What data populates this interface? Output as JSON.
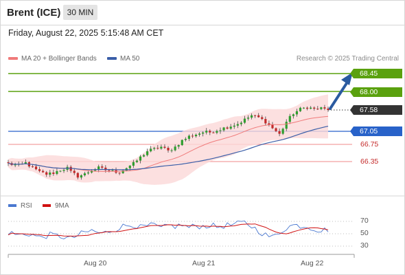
{
  "header": {
    "instrument": "Brent (ICE)",
    "timeframe": "30 MIN"
  },
  "datetime": "Friday, August 22, 2025 5:15:48 AM CET",
  "legend": {
    "ma20": "MA 20 + Bollinger Bands",
    "ma50": "MA 50",
    "credit": "Research © 2025 Trading Central"
  },
  "levels": {
    "resistance": [
      "68.45",
      "68.00"
    ],
    "current": "67.58",
    "pivot": "67.05",
    "support": [
      "66.75",
      "66.35"
    ]
  },
  "rsi": {
    "label": "RSI",
    "ma_label": "9MA",
    "ticks": [
      "70",
      "50",
      "30"
    ]
  },
  "x_axis": {
    "labels": [
      "Aug 20",
      "Aug 21",
      "Aug 22"
    ]
  },
  "colors": {
    "resistance": "#5aa10e",
    "pivot": "#2862c9",
    "support": "#f08a8a",
    "support_text": "#c42a2a",
    "current": "#333333",
    "bull_candle": "#2e9e2e",
    "bear_candle": "#c42a2a",
    "bollinger_fill": "#fbd8d8",
    "ma20": "#f07a7a",
    "ma50": "#3a5ea8",
    "rsi_line": "#4a78d0",
    "rsi_ma": "#d01010",
    "arrow": "#2a5aa0"
  },
  "chart_data": {
    "type": "candlestick",
    "title": "Brent (ICE)",
    "y_range": [
      65.9,
      68.7
    ],
    "x_labels": [
      "Aug 20",
      "Aug 21",
      "Aug 22"
    ],
    "last_price": 67.58,
    "resistance_levels": [
      68.45,
      68.0
    ],
    "pivot": 67.05,
    "support_levels": [
      66.75,
      66.35
    ],
    "close_path": [
      [
        0,
        66.3
      ],
      [
        3,
        66.25
      ],
      [
        5,
        66.32
      ],
      [
        7,
        66.2
      ],
      [
        9,
        66.1
      ],
      [
        11,
        66.05
      ],
      [
        13,
        66.08
      ],
      [
        15,
        66.15
      ],
      [
        17,
        66.2
      ],
      [
        18,
        66.1
      ],
      [
        20,
        66.0
      ],
      [
        22,
        66.05
      ],
      [
        24,
        66.15
      ],
      [
        26,
        66.2
      ],
      [
        28,
        66.15
      ],
      [
        30,
        66.12
      ],
      [
        32,
        66.1
      ],
      [
        34,
        66.2
      ],
      [
        36,
        66.3
      ],
      [
        38,
        66.45
      ],
      [
        40,
        66.6
      ],
      [
        42,
        66.65
      ],
      [
        44,
        66.7
      ],
      [
        46,
        66.6
      ],
      [
        48,
        66.7
      ],
      [
        50,
        66.85
      ],
      [
        52,
        66.95
      ],
      [
        54,
        67.0
      ],
      [
        56,
        67.05
      ],
      [
        58,
        67.05
      ],
      [
        60,
        67.1
      ],
      [
        62,
        67.15
      ],
      [
        64,
        67.2
      ],
      [
        66,
        67.25
      ],
      [
        68,
        67.35
      ],
      [
        70,
        67.45
      ],
      [
        72,
        67.4
      ],
      [
        74,
        67.3
      ],
      [
        76,
        67.15
      ],
      [
        78,
        67.0
      ],
      [
        80,
        67.3
      ],
      [
        82,
        67.5
      ],
      [
        84,
        67.6
      ],
      [
        86,
        67.65
      ],
      [
        88,
        67.6
      ],
      [
        90,
        67.62
      ],
      [
        92,
        67.58
      ]
    ],
    "rsi_range": [
      20,
      80
    ],
    "rsi_ticks": [
      70,
      50,
      30
    ],
    "rsi_path": [
      [
        0,
        52
      ],
      [
        3,
        48
      ],
      [
        6,
        50
      ],
      [
        9,
        44
      ],
      [
        12,
        48
      ],
      [
        15,
        46
      ],
      [
        18,
        42
      ],
      [
        21,
        50
      ],
      [
        24,
        55
      ],
      [
        27,
        50
      ],
      [
        30,
        56
      ],
      [
        33,
        62
      ],
      [
        36,
        65
      ],
      [
        38,
        60
      ],
      [
        40,
        62
      ],
      [
        42,
        64
      ],
      [
        44,
        58
      ],
      [
        46,
        63
      ],
      [
        48,
        62
      ],
      [
        50,
        64
      ],
      [
        52,
        60
      ],
      [
        54,
        63
      ],
      [
        56,
        62
      ],
      [
        58,
        64
      ],
      [
        60,
        61
      ],
      [
        62,
        63
      ],
      [
        64,
        64
      ],
      [
        66,
        66
      ],
      [
        68,
        68
      ],
      [
        70,
        62
      ],
      [
        72,
        55
      ],
      [
        74,
        48
      ],
      [
        76,
        44
      ],
      [
        78,
        52
      ],
      [
        80,
        60
      ],
      [
        82,
        64
      ],
      [
        84,
        63
      ],
      [
        86,
        62
      ],
      [
        88,
        58
      ],
      [
        90,
        55
      ],
      [
        92,
        57
      ]
    ]
  }
}
